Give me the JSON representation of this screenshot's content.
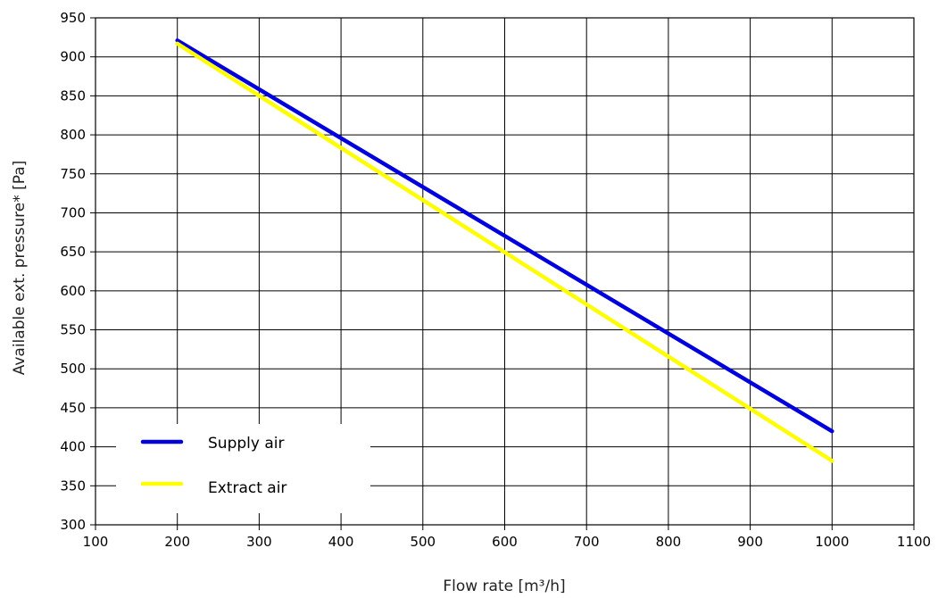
{
  "chart_data": {
    "type": "line",
    "title": "",
    "xlabel": "Flow rate [m³/h]",
    "ylabel": "Available ext. pressure* [Pa]",
    "xlim": [
      100,
      1100
    ],
    "ylim": [
      300,
      950
    ],
    "x_ticks": [
      100,
      200,
      300,
      400,
      500,
      600,
      700,
      800,
      900,
      1000,
      1100
    ],
    "y_ticks": [
      300,
      350,
      400,
      450,
      500,
      550,
      600,
      650,
      700,
      750,
      800,
      850,
      900,
      950
    ],
    "grid": true,
    "legend_position": "bottom-left",
    "series": [
      {
        "name": "Supply air",
        "color": "#0000dd",
        "x": [
          200,
          1000
        ],
        "y": [
          921,
          420
        ]
      },
      {
        "name": "Extract air",
        "color": "#ffff00",
        "x": [
          200,
          1000
        ],
        "y": [
          917,
          382
        ]
      }
    ]
  }
}
